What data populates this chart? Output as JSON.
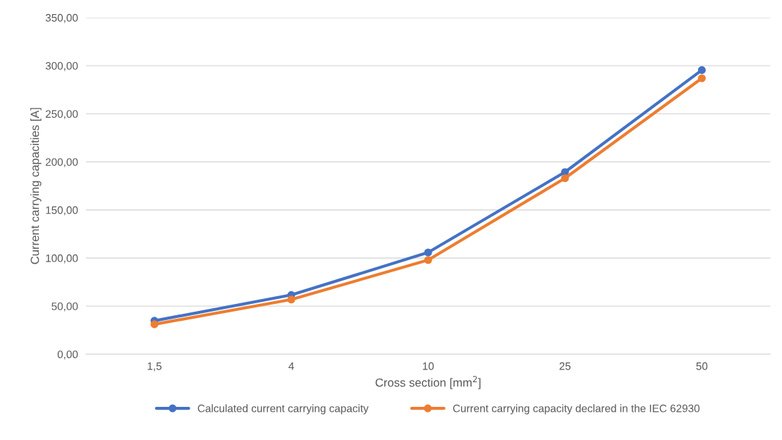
{
  "chart_data": {
    "type": "line",
    "xlabel": "Cross section [mm$^{2}$]",
    "ylabel": "Current carrying capacities [A]",
    "categories": [
      "1,5",
      "4",
      "10",
      "25",
      "50"
    ],
    "series": [
      {
        "name": "Calculated current carrying capacity",
        "color": "#4472c4",
        "values": [
          34.8,
          61.6,
          105.8,
          189.4,
          295.4
        ]
      },
      {
        "name": "Current carrying capacity declared in the IEC 62930",
        "color": "#ed7d31",
        "values": [
          31.1,
          56.9,
          97.9,
          183.0,
          286.9
        ]
      }
    ],
    "ylim": [
      0,
      350
    ],
    "yticks": [
      {
        "value": 0,
        "label": "0,00"
      },
      {
        "value": 50,
        "label": "50,00"
      },
      {
        "value": 100,
        "label": "100,00"
      },
      {
        "value": 150,
        "label": "150,00"
      },
      {
        "value": 200,
        "label": "200,00"
      },
      {
        "value": 250,
        "label": "250,00"
      },
      {
        "value": 300,
        "label": "300,00"
      },
      {
        "value": 350,
        "label": "350,00"
      }
    ],
    "grid": "y",
    "legend": "bottom",
    "marker": "circle",
    "line_style": "solid"
  }
}
